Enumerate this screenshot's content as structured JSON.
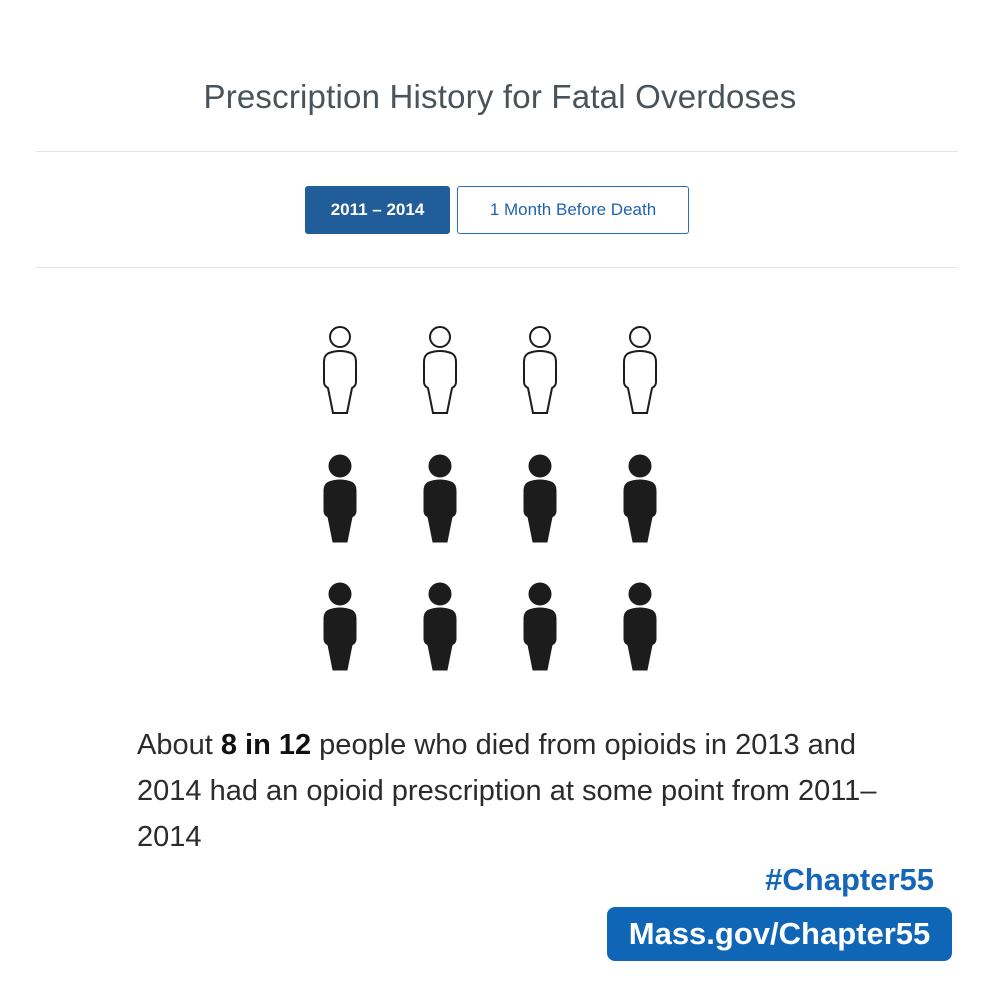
{
  "title": "Prescription History for Fatal Overdoses",
  "tabs": [
    {
      "label": "2011 – 2014",
      "active": true
    },
    {
      "label": "1 Month Before Death",
      "active": false
    }
  ],
  "pictogram": {
    "total": 12,
    "highlighted": 8,
    "columns": 4,
    "filled_color": "#1c1c1c",
    "outline_color": "#1c1c1c",
    "icon": "person-icon"
  },
  "caption": {
    "prefix": "About ",
    "emphasis": "8 in 12",
    "suffix": " people who died from opioids in 2013 and 2014 had an opioid prescription at some point from 2011–2014"
  },
  "hashtag": "#Chapter55",
  "site": "Mass.gov/Chapter55",
  "colors": {
    "title": "#4a535a",
    "tab_active_bg": "#215d98",
    "tab_inactive_text": "#1f63b0",
    "brand_blue": "#0f66b6"
  }
}
